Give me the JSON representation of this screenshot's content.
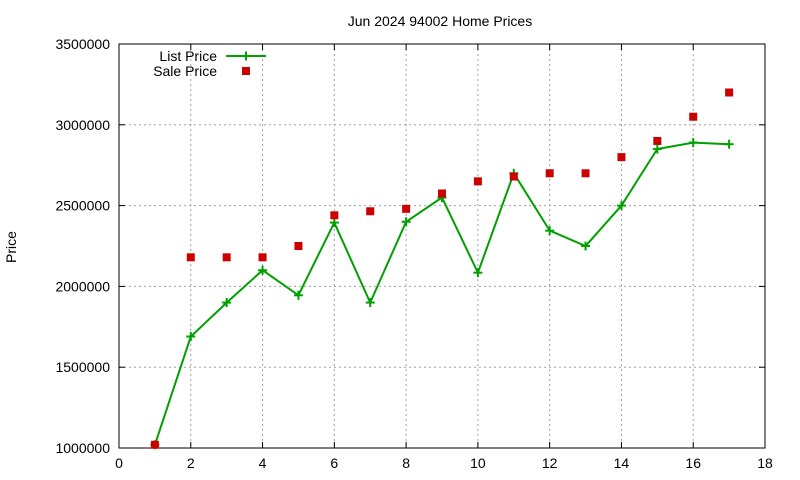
{
  "chart_data": {
    "type": "line",
    "title": "Jun 2024 94002 Home Prices",
    "xlabel": "",
    "ylabel": "Price",
    "xlim": [
      0,
      18
    ],
    "ylim": [
      1000000,
      3500000
    ],
    "x_ticks": [
      0,
      2,
      4,
      6,
      8,
      10,
      12,
      14,
      16,
      18
    ],
    "y_ticks": [
      1000000,
      1500000,
      2000000,
      2500000,
      3000000,
      3500000
    ],
    "grid": true,
    "legend_position": "top-left",
    "series": [
      {
        "name": "List Price",
        "style": "line with plus markers",
        "color": "#00a000",
        "x": [
          1,
          2,
          3,
          4,
          5,
          6,
          7,
          8,
          9,
          10,
          11,
          12,
          13,
          14,
          15,
          16,
          17
        ],
        "values": [
          1020000,
          1690000,
          1900000,
          2100000,
          1945000,
          2395000,
          1900000,
          2400000,
          2550000,
          2085000,
          2700000,
          2345000,
          2250000,
          2500000,
          2850000,
          2890000,
          2880000
        ]
      },
      {
        "name": "Sale Price",
        "style": "square points",
        "color": "#cc0000",
        "x": [
          1,
          2,
          3,
          4,
          5,
          6,
          7,
          8,
          9,
          10,
          11,
          12,
          13,
          14,
          15,
          16,
          17
        ],
        "values": [
          1020000,
          2180000,
          2180000,
          2180000,
          2250000,
          2440000,
          2465000,
          2480000,
          2575000,
          2650000,
          2680000,
          2700000,
          2700000,
          2800000,
          2900000,
          3050000,
          3200000
        ]
      }
    ]
  }
}
